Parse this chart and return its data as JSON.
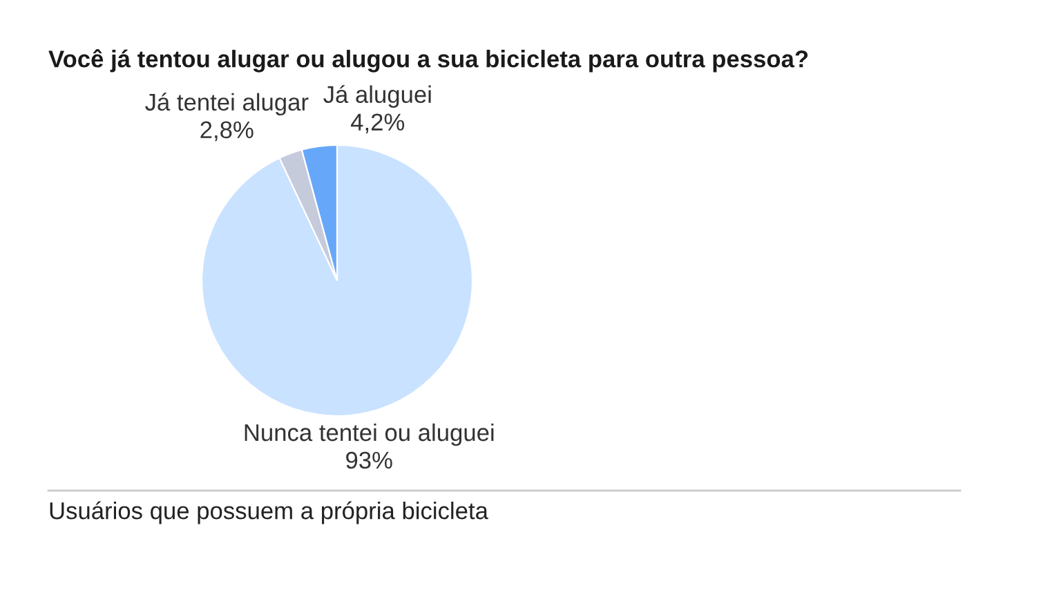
{
  "chart_data": {
    "type": "pie",
    "title": "Você já tentou alugar ou alugou a sua bicicleta para outra pessoa?",
    "categories": [
      "Nunca tentei ou aluguei",
      "Já tentei alugar",
      "Já aluguei"
    ],
    "values": [
      93,
      2.8,
      4.2
    ],
    "value_labels": [
      "93%",
      "2,8%",
      "4,2%"
    ],
    "colors": [
      "#c9e2ff",
      "#c6cbdc",
      "#66a7fa"
    ],
    "annotations": [
      "Usuários que possuem a própria bicicleta"
    ]
  }
}
